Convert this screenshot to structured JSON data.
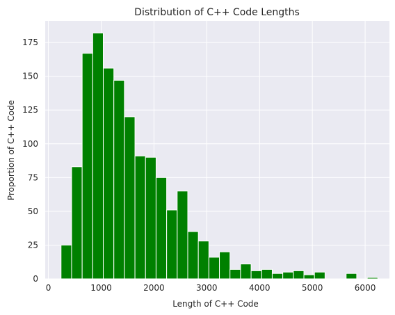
{
  "chart_data": {
    "type": "bar",
    "subtype": "histogram",
    "title": "Distribution of C++ Code Lengths",
    "xlabel": "Length of C++ Code",
    "ylabel": "Proportion of C++ Code",
    "xlim": [
      -60,
      6460
    ],
    "ylim": [
      0,
      191
    ],
    "grid": true,
    "legend": "none",
    "colors": {
      "bar": "#008000",
      "background": "#eaeaf2",
      "grid": "#ffffff",
      "text": "#262626"
    },
    "xticks": [
      {
        "value": 0,
        "label": "0"
      },
      {
        "value": 1000,
        "label": "1000"
      },
      {
        "value": 2000,
        "label": "2000"
      },
      {
        "value": 3000,
        "label": "3000"
      },
      {
        "value": 4000,
        "label": "4000"
      },
      {
        "value": 5000,
        "label": "5000"
      },
      {
        "value": 6000,
        "label": "6000"
      }
    ],
    "yticks": [
      {
        "value": 0,
        "label": "0"
      },
      {
        "value": 25,
        "label": "25"
      },
      {
        "value": 50,
        "label": "50"
      },
      {
        "value": 75,
        "label": "75"
      },
      {
        "value": 100,
        "label": "100"
      },
      {
        "value": 125,
        "label": "125"
      },
      {
        "value": 150,
        "label": "150"
      },
      {
        "value": 175,
        "label": "175"
      }
    ],
    "bins": [
      {
        "start": 240,
        "end": 440,
        "value": 25
      },
      {
        "start": 440,
        "end": 640,
        "value": 83
      },
      {
        "start": 640,
        "end": 840,
        "value": 167
      },
      {
        "start": 840,
        "end": 1040,
        "value": 182
      },
      {
        "start": 1040,
        "end": 1240,
        "value": 156
      },
      {
        "start": 1240,
        "end": 1440,
        "value": 147
      },
      {
        "start": 1440,
        "end": 1640,
        "value": 120
      },
      {
        "start": 1640,
        "end": 1840,
        "value": 91
      },
      {
        "start": 1840,
        "end": 2040,
        "value": 90
      },
      {
        "start": 2040,
        "end": 2240,
        "value": 75
      },
      {
        "start": 2240,
        "end": 2440,
        "value": 51
      },
      {
        "start": 2440,
        "end": 2640,
        "value": 65
      },
      {
        "start": 2640,
        "end": 2840,
        "value": 35
      },
      {
        "start": 2840,
        "end": 3040,
        "value": 28
      },
      {
        "start": 3040,
        "end": 3240,
        "value": 16
      },
      {
        "start": 3240,
        "end": 3440,
        "value": 20
      },
      {
        "start": 3440,
        "end": 3640,
        "value": 7
      },
      {
        "start": 3640,
        "end": 3840,
        "value": 11
      },
      {
        "start": 3840,
        "end": 4040,
        "value": 6
      },
      {
        "start": 4040,
        "end": 4240,
        "value": 7
      },
      {
        "start": 4240,
        "end": 4440,
        "value": 4
      },
      {
        "start": 4440,
        "end": 4640,
        "value": 5
      },
      {
        "start": 4640,
        "end": 4840,
        "value": 6
      },
      {
        "start": 4840,
        "end": 5040,
        "value": 3
      },
      {
        "start": 5040,
        "end": 5240,
        "value": 5
      },
      {
        "start": 5240,
        "end": 5440,
        "value": 0
      },
      {
        "start": 5440,
        "end": 5640,
        "value": 0
      },
      {
        "start": 5640,
        "end": 5840,
        "value": 4
      },
      {
        "start": 5840,
        "end": 6040,
        "value": 0
      },
      {
        "start": 6040,
        "end": 6240,
        "value": 1
      }
    ]
  }
}
